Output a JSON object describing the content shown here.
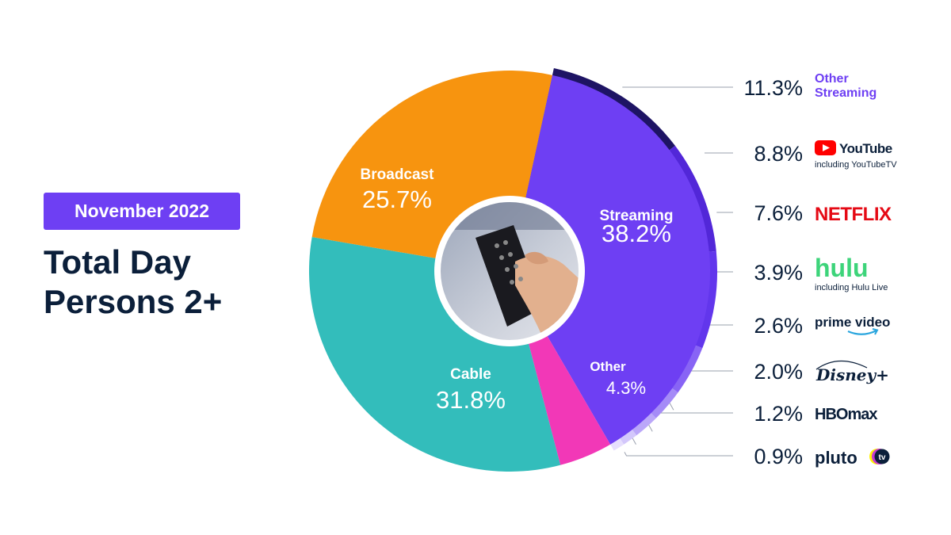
{
  "header": {
    "badge": "November 2022",
    "title_line1": "Total Day",
    "title_line2": "Persons 2+"
  },
  "colors": {
    "streaming": "#6e3ff3",
    "broadcast": "#f7940f",
    "cable": "#33bdbb",
    "other": "#f238b7",
    "accent": "#6e3ff3",
    "navy": "#0b1f3a"
  },
  "center_image": {
    "description_icon": "tv-remote-photo-icon"
  },
  "chart_data": {
    "type": "pie",
    "title": "Total Day Persons 2+",
    "slices": [
      {
        "name": "Streaming",
        "value": 38.2,
        "label": "38.2%",
        "color": "#6e3ff3"
      },
      {
        "name": "Other",
        "value": 4.3,
        "label": "4.3%",
        "color": "#f238b7"
      },
      {
        "name": "Cable",
        "value": 31.8,
        "label": "31.8%",
        "color": "#33bdbb"
      },
      {
        "name": "Broadcast",
        "value": 25.7,
        "label": "25.7%",
        "color": "#f7940f"
      }
    ],
    "streaming_breakdown": [
      {
        "name": "Other Streaming",
        "value": 11.3,
        "label": "11.3%",
        "color": "#1e1464",
        "text": "Other Streaming"
      },
      {
        "name": "YouTube",
        "value": 8.8,
        "label": "8.8%",
        "color": "#5227d8",
        "text": "YouTube",
        "sub": "including YouTubeTV",
        "icon": "youtube-logo-icon"
      },
      {
        "name": "Netflix",
        "value": 7.6,
        "label": "7.6%",
        "color": "#6236ec",
        "text": "NETFLIX",
        "icon": "netflix-logo-icon"
      },
      {
        "name": "Hulu",
        "value": 3.9,
        "label": "3.9%",
        "color": "#8864f5",
        "text": "hulu",
        "sub": "including Hulu Live",
        "icon": "hulu-logo-icon"
      },
      {
        "name": "Prime Video",
        "value": 2.6,
        "label": "2.6%",
        "color": "#a58bf7",
        "text": "prime video",
        "icon": "prime-video-logo-icon"
      },
      {
        "name": "Disney+",
        "value": 2.0,
        "label": "2.0%",
        "color": "#bba7f9",
        "text": "Disney+",
        "icon": "disney-plus-logo-icon"
      },
      {
        "name": "HBO Max",
        "value": 1.2,
        "label": "1.2%",
        "color": "#d3c7fb",
        "text": "HBOmax",
        "icon": "hbo-max-logo-icon"
      },
      {
        "name": "Pluto TV",
        "value": 0.9,
        "label": "0.9%",
        "color": "#e6defd",
        "text": "pluto",
        "badge": "tv",
        "icon": "pluto-tv-logo-icon"
      }
    ]
  }
}
